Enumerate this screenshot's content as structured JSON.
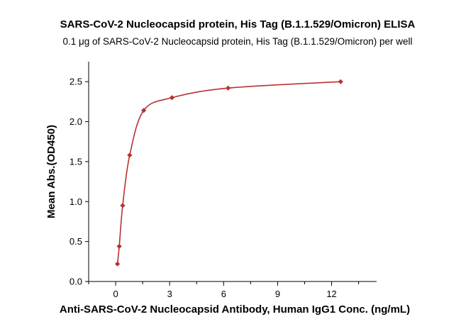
{
  "chart_data": {
    "type": "scatter",
    "title": "SARS-CoV-2 Nucleocapsid protein, His Tag (B.1.1.529/Omicron) ELISA",
    "subtitle": "0.1 μg of SARS-CoV-2 Nucleocapsid protein, His Tag (B.1.1.529/Omicron) per well",
    "xlabel": "Anti-SARS-CoV-2 Nucleocapsid Antibody, Human IgG1 Conc. (ng/mL)",
    "ylabel": "Mean Abs.(OD450)",
    "xlim": [
      -1.5,
      14.5
    ],
    "ylim": [
      0,
      2.75
    ],
    "xticks": [
      "0",
      "3",
      "6",
      "9",
      "12"
    ],
    "yticks": [
      "0.0",
      "0.5",
      "1.0",
      "1.5",
      "2.0",
      "2.5"
    ],
    "grid": false,
    "legend": "none",
    "series": [
      {
        "color": "#b83232",
        "marker": "diamond",
        "fit_line": true,
        "x": [
          0.1,
          0.2,
          0.39,
          0.78,
          1.56,
          3.13,
          6.25,
          12.5
        ],
        "y": [
          0.22,
          0.44,
          0.95,
          1.58,
          2.14,
          2.3,
          2.42,
          2.5
        ]
      }
    ]
  }
}
